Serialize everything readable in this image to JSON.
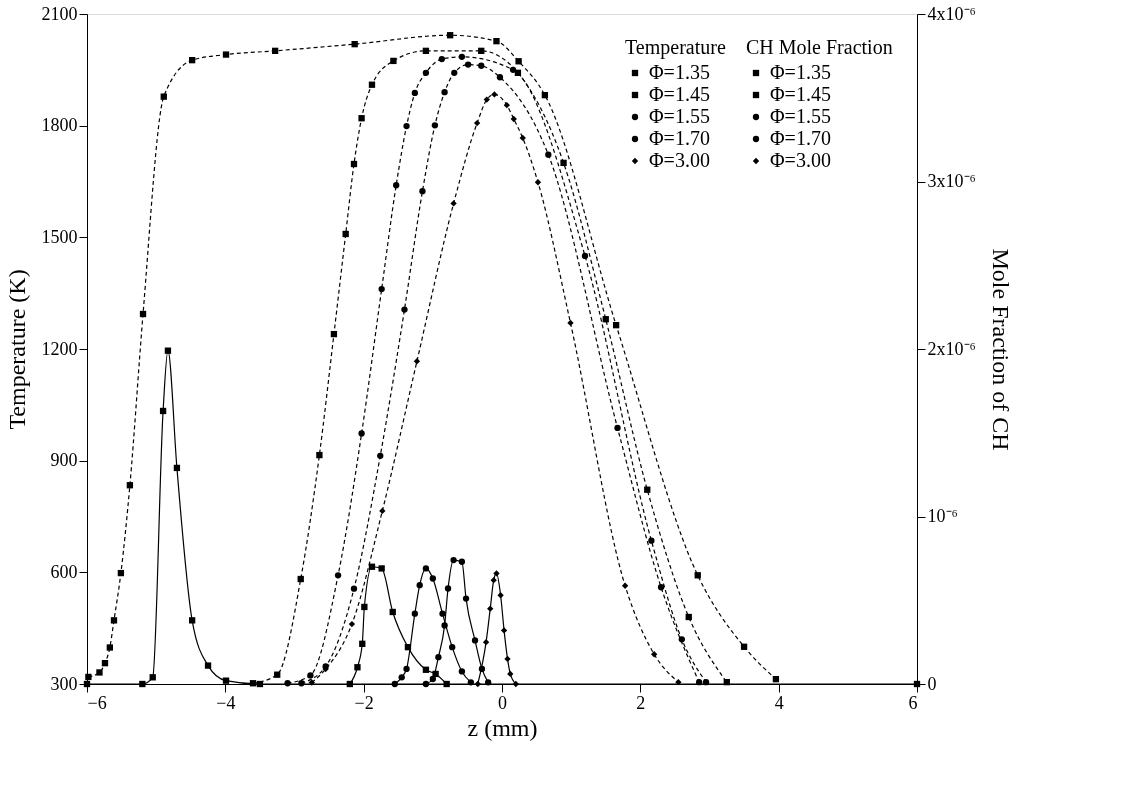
{
  "chart_data": {
    "type": "line",
    "xlabel": "z (mm)",
    "ylabel": "Temperature (K)",
    "y2label": "Mole Fraction of CH",
    "legend_title": "Temperature",
    "annotations": [
      "CH Mole Fraction"
    ],
    "xlim": [
      -6,
      6
    ],
    "xticks": [
      -6,
      -4,
      -2,
      0,
      2,
      4,
      6
    ],
    "ylim": [
      300,
      2100
    ],
    "yticks": [
      300,
      600,
      900,
      1200,
      1500,
      1800,
      2100
    ],
    "y2lim": [
      0,
      4e-06
    ],
    "y2ticks": [
      0,
      {
        "value": 1e-06,
        "label": "10⁻⁶"
      },
      {
        "value": 2e-06,
        "label": "2x10⁻⁶"
      },
      {
        "value": 3e-06,
        "label": "3x10⁻⁶"
      },
      {
        "value": 4e-06,
        "label": "4x10⁻⁶"
      }
    ],
    "grid": false,
    "legend": "top right",
    "series": [
      {
        "name": "Φ=1.35",
        "color": "#000000",
        "marker": "square",
        "line_style": "dashed",
        "x": [
          -5.98,
          -5.82,
          -5.74,
          -5.67,
          -5.61,
          -5.51,
          -5.38,
          -5.19,
          -4.89,
          -4.48,
          -3.99,
          -3.28,
          -2.13,
          -0.75,
          -0.08,
          0.24,
          0.62,
          1.65,
          2.83,
          3.5,
          3.96
        ],
        "values": [
          319,
          331,
          356,
          398,
          471,
          598,
          834,
          1294,
          1878,
          1976,
          1991,
          2001,
          2019,
          2043,
          2027,
          1973,
          1882,
          1264,
          592,
          400,
          313
        ]
      },
      {
        "name": "Φ=1.45",
        "color": "#000000",
        "marker": "square",
        "line_style": "dashed",
        "x": [
          -3.6,
          -3.25,
          -2.91,
          -2.64,
          -2.43,
          -2.26,
          -2.14,
          -2.03,
          -1.88,
          -1.57,
          -1.1,
          -0.3,
          0.23,
          0.89,
          1.5,
          2.1,
          2.7,
          3.25
        ],
        "values": [
          302,
          325,
          582,
          915,
          1240,
          1509,
          1697,
          1820,
          1910,
          1974,
          2001,
          2001,
          1942,
          1700,
          1280,
          822,
          480,
          305
        ]
      },
      {
        "name": "Φ=1.55",
        "color": "#000000",
        "marker": "circle",
        "line_style": "dashed",
        "x": [
          -3.1,
          -2.77,
          -2.37,
          -2.03,
          -1.74,
          -1.53,
          -1.38,
          -1.26,
          -1.1,
          -0.87,
          -0.58,
          0.16,
          1.2,
          2.16,
          2.6,
          2.95
        ],
        "values": [
          302,
          323,
          592,
          973,
          1361,
          1640,
          1799,
          1888,
          1942,
          1979,
          1985,
          1950,
          1450,
          685,
          420,
          305
        ]
      },
      {
        "name": "Φ=1.70",
        "color": "#000000",
        "marker": "circle",
        "line_style": "dashed",
        "x": [
          -2.9,
          -2.55,
          -2.14,
          -1.76,
          -1.41,
          -1.15,
          -0.97,
          -0.83,
          -0.69,
          -0.49,
          -0.3,
          -0.03,
          0.67,
          1.67,
          2.3,
          2.85
        ],
        "values": [
          302,
          347,
          556,
          913,
          1306,
          1624,
          1801,
          1890,
          1942,
          1964,
          1961,
          1930,
          1722,
          988,
          560,
          305
        ]
      },
      {
        "name": "Φ=3.00",
        "color": "#000000",
        "marker": "diamond",
        "line_style": "dashed",
        "x": [
          -2.75,
          -2.55,
          -2.17,
          -1.73,
          -1.23,
          -0.7,
          -0.36,
          -0.22,
          -0.11,
          0.07,
          0.17,
          0.3,
          0.52,
          0.99,
          1.78,
          2.2,
          2.55
        ],
        "values": [
          304,
          340,
          461,
          765,
          1167,
          1591,
          1807,
          1870,
          1884,
          1855,
          1818,
          1767,
          1648,
          1270,
          564,
          380,
          305
        ]
      },
      {
        "name": "Φ=1.35",
        "color": "#000000",
        "marker": "square",
        "line_style": "solid",
        "axis": "y2",
        "x": [
          -6,
          -5.2,
          -5.05,
          -4.9,
          -4.83,
          -4.7,
          -4.48,
          -4.25,
          -3.99,
          -3.5,
          6
        ],
        "values": [
          0,
          0,
          4e-08,
          1.63e-06,
          1.99e-06,
          1.29e-06,
          3.8e-07,
          1.1e-07,
          2e-08,
          0,
          0
        ]
      },
      {
        "name": "Φ=1.45",
        "color": "#000000",
        "marker": "square",
        "line_style": "solid",
        "axis": "y2",
        "x": [
          -2.2,
          -2.09,
          -2.02,
          -1.99,
          -1.88,
          -1.74,
          -1.58,
          -1.36,
          -1.1,
          -0.96,
          -0.8
        ],
        "values": [
          0,
          1e-07,
          2.4e-07,
          4.6e-07,
          7e-07,
          6.9e-07,
          4.3e-07,
          2.2e-07,
          8.5e-08,
          6e-08,
          0
        ]
      },
      {
        "name": "Φ=1.55",
        "color": "#000000",
        "marker": "circle",
        "line_style": "solid",
        "axis": "y2",
        "x": [
          -1.55,
          -1.45,
          -1.38,
          -1.26,
          -1.19,
          -1.1,
          -1.0,
          -0.86,
          -0.72,
          -0.58,
          -0.45
        ],
        "values": [
          0,
          4e-08,
          9e-08,
          4.2e-07,
          5.9e-07,
          6.9e-07,
          6.3e-07,
          4.2e-07,
          2.2e-07,
          7.5e-08,
          1e-08
        ]
      },
      {
        "name": "Φ=1.70",
        "color": "#000000",
        "marker": "circle",
        "line_style": "solid",
        "axis": "y2",
        "x": [
          -1.1,
          -1.0,
          -0.92,
          -0.83,
          -0.78,
          -0.7,
          -0.58,
          -0.52,
          -0.39,
          -0.29,
          -0.2
        ],
        "values": [
          0,
          3e-08,
          1.6e-07,
          3.5e-07,
          5.7e-07,
          7.4e-07,
          7.3e-07,
          5.1e-07,
          2.6e-07,
          9e-08,
          1e-08
        ]
      },
      {
        "name": "Φ=3.00",
        "color": "#000000",
        "marker": "diamond",
        "line_style": "solid",
        "axis": "y2",
        "x": [
          -0.35,
          -0.23,
          -0.17,
          -0.12,
          -0.08,
          -0.02,
          0.03,
          0.08,
          0.12,
          0.2
        ],
        "values": [
          0,
          2.5e-07,
          4.5e-07,
          6.2e-07,
          6.6e-07,
          5.3e-07,
          3.2e-07,
          1.5e-07,
          6e-08,
          0
        ]
      }
    ]
  }
}
